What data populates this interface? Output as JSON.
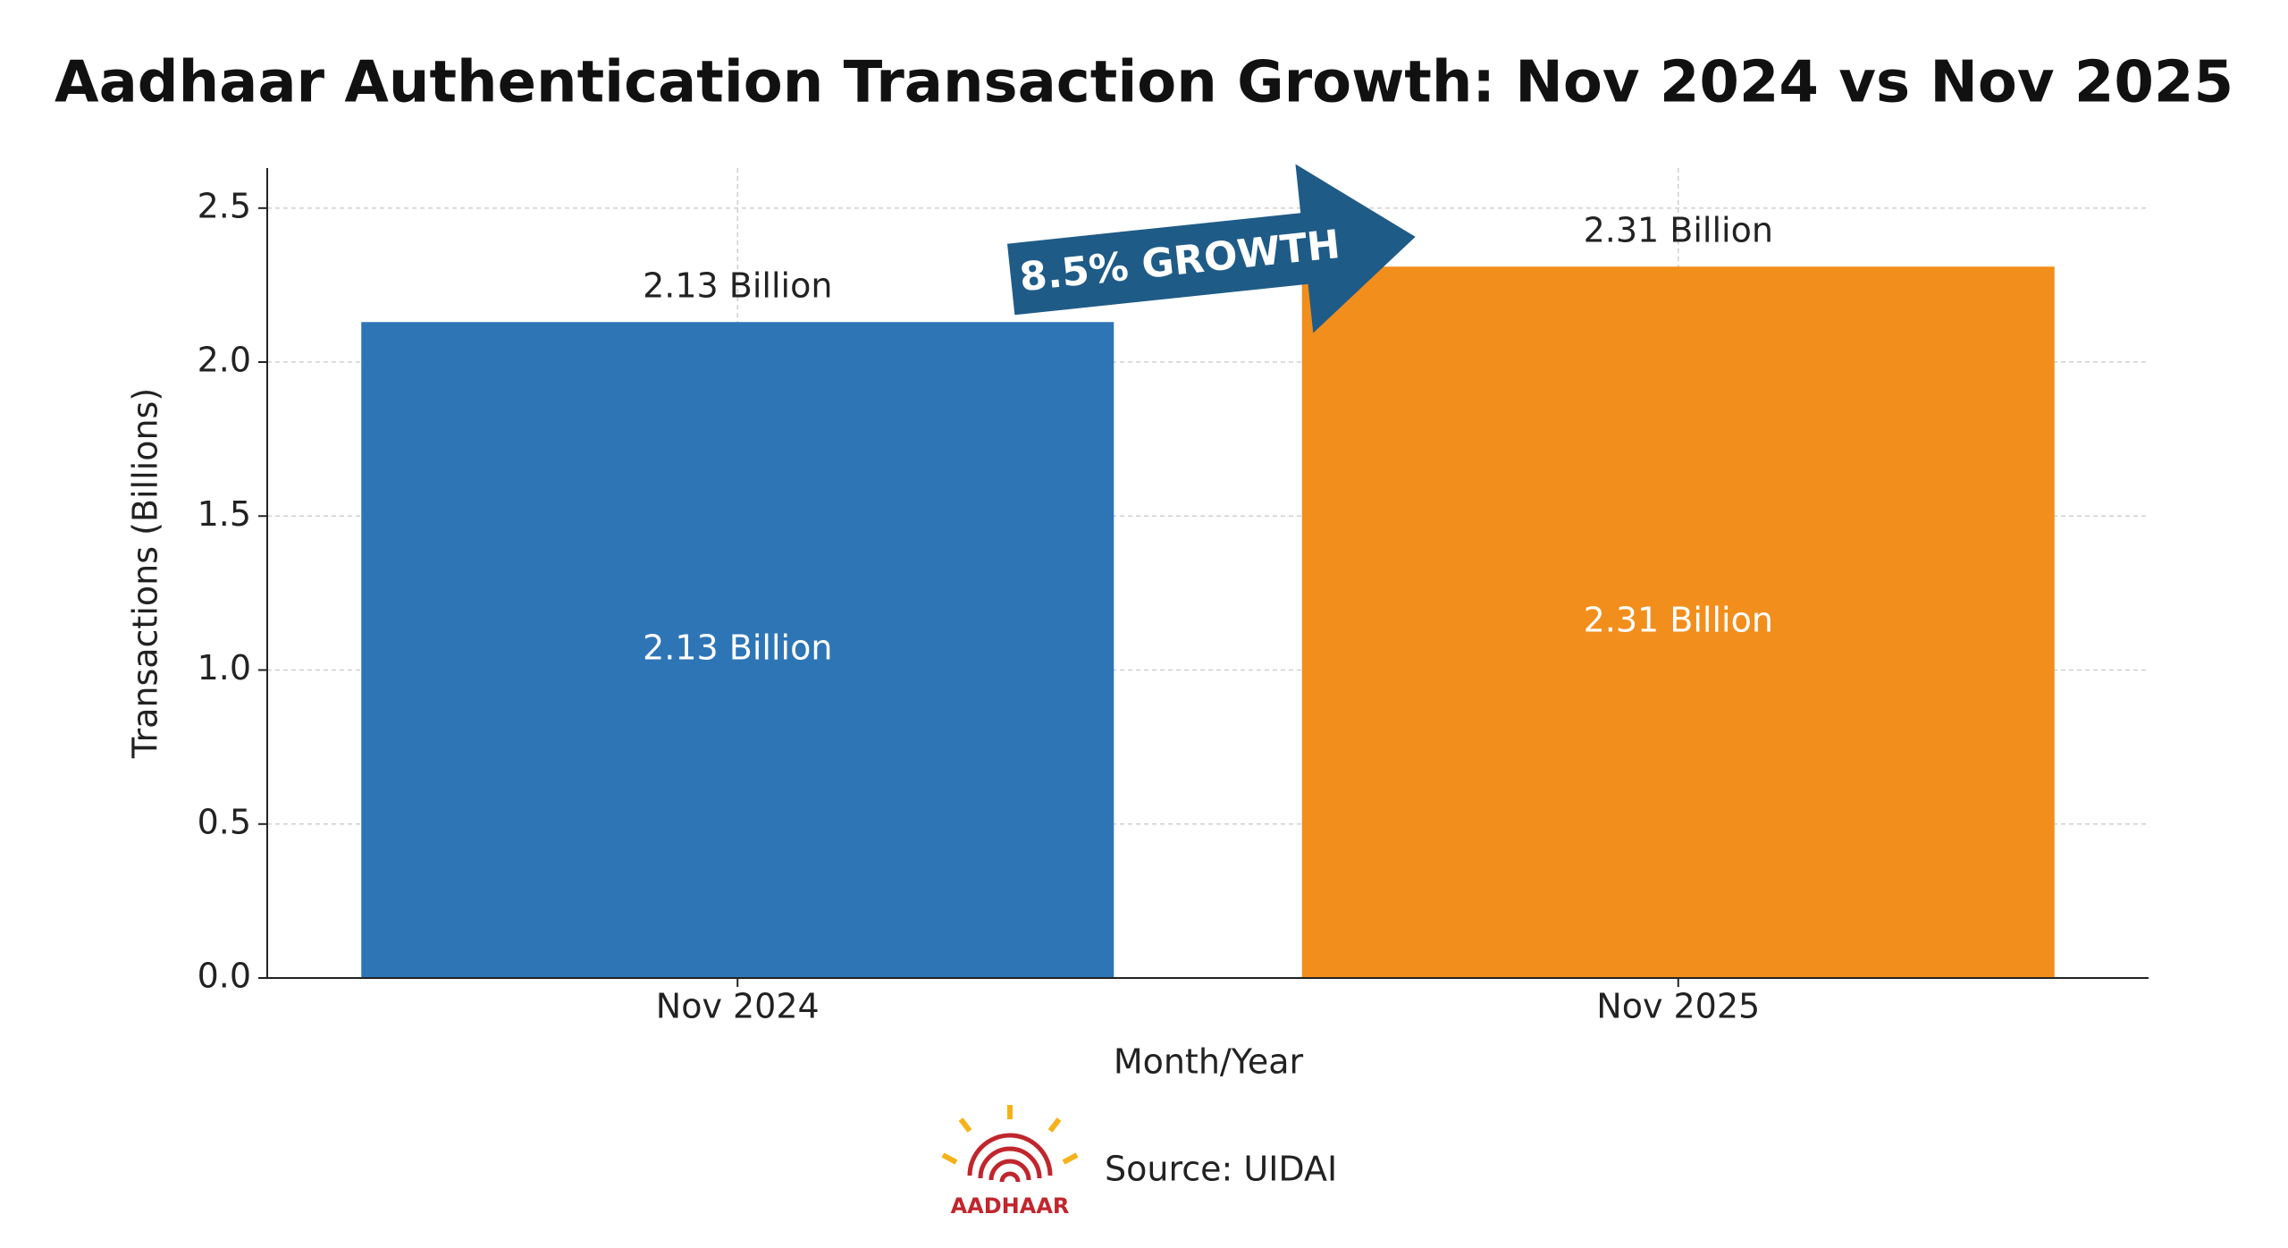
{
  "chart_data": {
    "type": "bar",
    "title": "Aadhaar Authentication Transaction Growth: Nov 2024 vs Nov 2025",
    "x_label": "Month/Year",
    "y_label": "Transactions (Billions)",
    "categories": [
      "Nov 2024",
      "Nov 2025"
    ],
    "values": [
      2.13,
      2.31
    ],
    "value_labels": [
      "2.13 Billion",
      "2.31 Billion"
    ],
    "colors": [
      "#2e75b6",
      "#f28e1c"
    ],
    "ylim": [
      0,
      2.63
    ],
    "yticks": [
      {
        "value": 0,
        "label": "0.0"
      },
      0.5,
      {
        "value": 1,
        "label": "1.0"
      },
      1.5,
      {
        "value": 2,
        "label": "2.0"
      },
      2.5
    ],
    "grid": true,
    "annotation": "8.5% GROWTH",
    "source": "Source: UIDAI",
    "logo_text": "AADHAAR"
  }
}
